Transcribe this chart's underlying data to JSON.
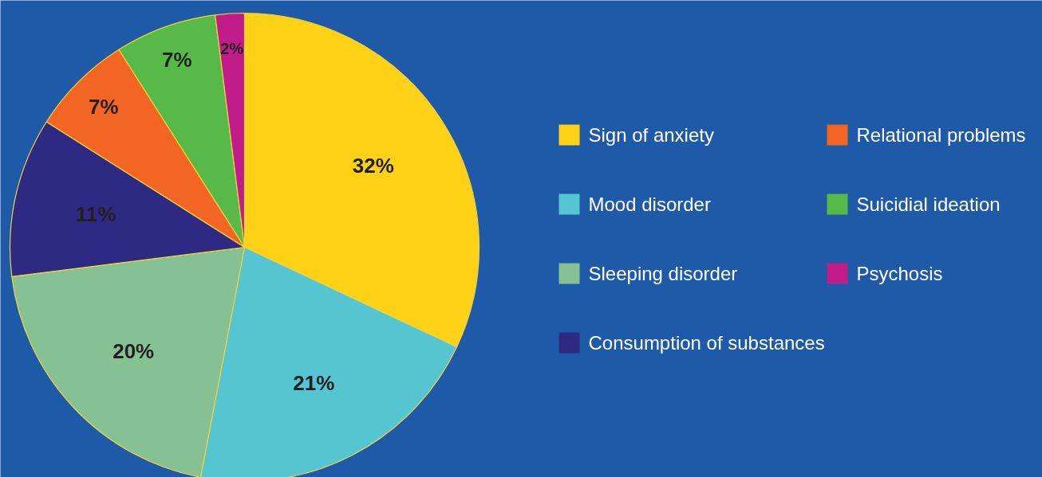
{
  "chart_data": {
    "type": "pie",
    "categories": [
      "Sign of anxiety",
      "Mood disorder",
      "Sleeping disorder",
      "Consumption of substances",
      "Relational problems",
      "Suicidial ideation",
      "Psychosis"
    ],
    "values": [
      32,
      21,
      20,
      11,
      7,
      7,
      2
    ],
    "colors": [
      "#fcd116",
      "#55c5d1",
      "#86c194",
      "#2e2a84",
      "#f26522",
      "#57b947",
      "#c21b8a"
    ],
    "value_labels": [
      "32%",
      "21%",
      "20%",
      "11%",
      "7%",
      "7%",
      "2%"
    ],
    "legend": "right"
  }
}
